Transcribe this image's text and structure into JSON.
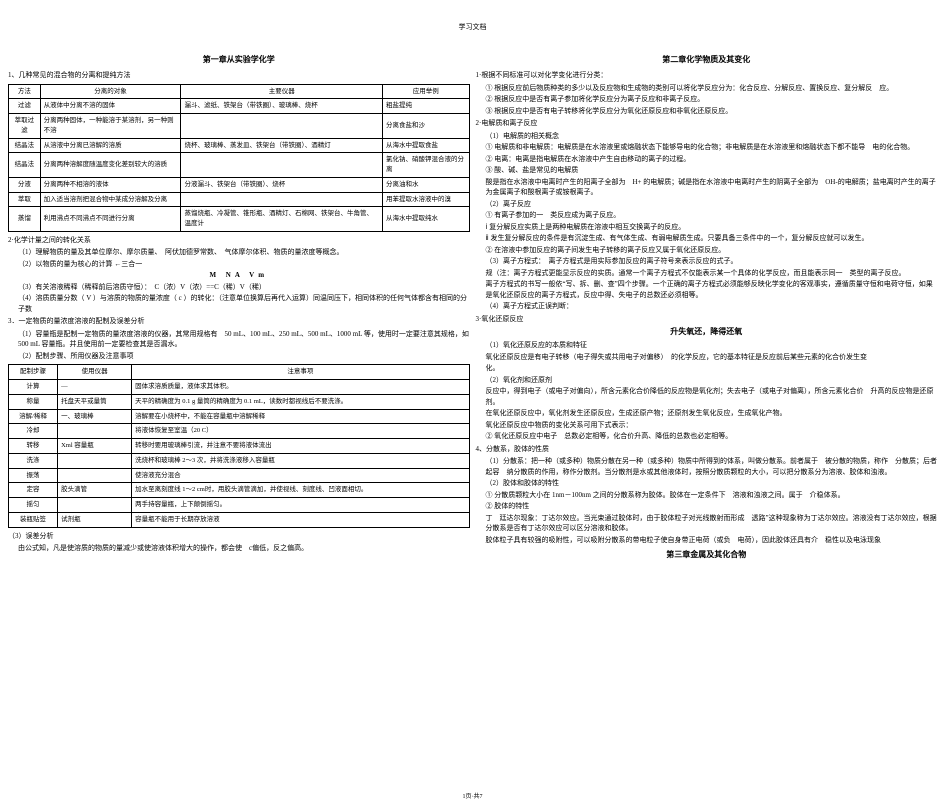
{
  "header": "学习文档",
  "footer": "1页·共7",
  "left": {
    "chapter": "第一章从实验学化学",
    "s1": "1、几种常见的混合物的分离和提纯方法",
    "tbl1": {
      "head": [
        "方法",
        "分离的对象",
        "主要仪器",
        "应用举例"
      ],
      "rows": [
        [
          "过滤",
          "从液体中分离不溶的固体",
          "漏斗、滤纸、铁架台（带铁圈）、玻璃棒、烧杯",
          "粗盐提纯"
        ],
        [
          "萃取过滤",
          "分离两种固体，一种能溶于某溶剂，另一种则不溶",
          "",
          "分离食盐和沙"
        ],
        [
          "结晶法",
          "从溶液中分离已溶解的溶质",
          "烧杯、玻璃棒、蒸发皿、铁架台（带铁圈）、酒精灯",
          "从海水中提取食盐"
        ],
        [
          "结晶法",
          "分离两种溶解度随温度变化差别较大的溶质",
          "",
          "氯化钠、硝酸钾混合液的分离"
        ],
        [
          "分液",
          "分离两种不相溶的液体",
          "分液漏斗、铁架台（带铁圈）、烧杯",
          "分离油和水"
        ],
        [
          "萃取",
          "加入适当溶剂把混合物中某成分溶解及分离",
          "",
          "用苯提取水溶液中的溴"
        ],
        [
          "蒸馏",
          "利用沸点不同沸点不同进行分离",
          "蒸馏烧瓶、冷凝管、锥形瓶、酒精灯、石棉网、铁架台、牛角管、温度计",
          "从海水中提取纯水"
        ]
      ]
    },
    "s2": "2·化学计量之间的转化关系",
    "s2a": "（1）理解物质的量及其单位摩尔、摩尔质量、　阿伏加德罗常数、　气体摩尔体积、物质的量浓度等概念。",
    "s2b": "（2）以物质的量为核心的计算 ←三合一",
    "s2b_formula": "M  NA  Vm",
    "s2c": "（3）有关溶液稀释（稀释前后溶质守恒）：　C（浓）V（浓）==C（稀）V（稀）",
    "s2d": "（4）溶质质量分数（ V ）与溶质的物质的量浓度（ c ）的转化：（注意单位换算后再代入运算）同温同压下，相同体积的任何气体都含有相同的分子数",
    "s3": "3．一定物质的量浓度溶液的配制及误差分析",
    "s3a": "（1）容量瓶是配制一定物质的量浓度溶液的仪器，其常用规格有　50 mL、100 mL、250 mL、500 mL、1000 mL 等，使用时一定要注意其规格，如 500 mL 容量瓶。并且使用前一定要检查其是否漏水。",
    "s3b": "（2）配制步骤、所用仪器及注意事项",
    "tbl2": {
      "head": [
        "配制步骤",
        "使用仪器",
        "注意事项"
      ],
      "rows": [
        [
          "计算",
          "—",
          "固体求溶质质量，液体求其体积。"
        ],
        [
          "称量",
          "托盘天平或量筒",
          "天平的精确度为 0.1 g 量筒的精确度为 0.1 mL，读数时都视线后不要洗涤。"
        ],
        [
          "溶解/稀释",
          "一、玻璃棒",
          "溶解要在小烧杯中，不能在容量瓶中溶解稀释"
        ],
        [
          "冷却",
          "",
          "将液体恢复至室温（20 C）"
        ],
        [
          "转移",
          "Xml 容量瓶",
          "转移时要用玻璃棒引流，并注意不要将液体流出"
        ],
        [
          "洗涤",
          "",
          "洗烧杯和玻璃棒 2～3 次，并将洗涤液移入容量瓶"
        ],
        [
          "振荡",
          "",
          "使溶液充分混合"
        ],
        [
          "定容",
          "胶头滴管",
          "加水至离刻度线 1～2 cm时，用胶头滴管滴加，并使视线、刻度线、凹液面相切。"
        ],
        [
          "摇匀",
          "",
          "两手持容量瓶，上下颠倒摇匀。"
        ],
        [
          "装瓶贴签",
          "试剂瓶",
          "容量瓶不能用于长期存放溶液"
        ]
      ]
    },
    "s3c": "（3）误差分析",
    "s3d": "由公式知，凡是使溶质的物质的量减少或使溶液体积增大的操作，都会使　c偏低，反之偏高。"
  },
  "right": {
    "chapter": "第二章化学物质及其变化",
    "s1": "1·根据不同标准可以对化学变化进行分类：",
    "s1a": "① 根据反应前后物质种类的多少以及反应物和生成物的类别可以将化学反应分为：化合反应、分解反应、置换反应、复分解反　应。",
    "s1b": "② 根据反应中是否有离子参加将化学反应分为离子反应和非离子反应。",
    "s1c": "③ 根据反应中是否有电子转移将化学反应分为氧化还原反应和非氧化还原反应。",
    "s2": "2·电解质和离子反应",
    "s2_1": "（1）电解质的相关概念",
    "s2_1a": "① 电解质和非电解质：电解质是在水溶液里或熔融状态下能够导电的化合物；非电解质是在水溶液里和熔融状态下都不能导　电的化合物。",
    "s2_1b": "② 电离：电离是指电解质在水溶液中产生自由移动的离子的过程。",
    "s2_1c": "③ 酸、碱、盐是常见的电解质",
    "s2_1d": "酸是指在水溶液中电离时产生的阳离子全部为　H+ 的电解质；碱是指在水溶液中电离时产生的阴离子全部为　OH-的电解质；盐电离时产生的离子为金属离子和酸根离子或铵根离子。",
    "s2_2": "（2）离子反应",
    "s2_2a": "① 有离子参加的一　类反应成为离子反应。",
    "s2_2b": "ⅰ 复分解反应实质上是两种电解质在溶液中相互交换离子的反应。",
    "s2_2c": "ⅱ 发生复分解反应的条件是有沉淀生成、有气体生成、有弱电解质生成。只要具备三条件中的一个，复分解反应就可以发生。",
    "s2_2d": "② 在溶液中参加反应的离子间发生电子转移的离子反应又属于氧化还原反应。",
    "s2_3": "（3）离子方程式：　离子方程式是用实际参加反应的离子符号来表示反应的式子。",
    "s2_3a": "规（注：离子方程式更能显示反应的实质。通常一个离子方程式不仅能表示某一个具体的化学反应，而且能表示同一　类型的离子反应。",
    "s2_3b": "离子方程式的书写一般依“写、拆、删、查”四个步骤。一个正确的离子方程式必须能够反映化学变化的客观事实，遵循质量守恒和电荷守恒，如果是氧化还原反应的离子方程式，反应中得、失电子的总数还必须相等。",
    "s2_4": "（4）离子方程式正误判断：",
    "s3": "3·氧化还原反应",
    "mid": "升失氧还，降得还氧",
    "s3_1": "（1）氧化还原反应的本质和特征",
    "s3_1a": "氧化还原反应是有电子转移（电子得失或共用电子对偏移）　的化学反应，它的基本特征是反应前后某些元素的化合价发生变",
    "s3_1b": "化。",
    "s3_2": "（2）氧化剂和还原剂",
    "s3_2a": "反应中，得到电子（或电子对偏向），所含元素化合价降低的反应物是氧化剂；失去电子（或电子对偏离），所含元素化合价　升高的反应物是还原剂。",
    "s3_2b": "在氧化还原反应中，氧化剂发生还原反应，生成还原产物；还原剂发生氧化反应，生成氧化产物。",
    "s3_2c": "氧化还原反应中物质的变化关系可用下式表示：",
    "s3_2d": "② 氧化还原反应中电子　总数必定相等，化合价升高、降低的总数也必定相等。",
    "s4": "4、分散系，胶体的性质",
    "s4_1": "（1）分散系：把一种（或多种）物质分散在另一种（或多种）物质中所得到的体系，叫做分散系。前者属于　被分散的物质，称作　分散质；后者起容　纳分散质的作用，称作分散剂。当分散剂是水或其他液体时，按照分散质颗粒的大小，可以把分散系分为溶液、胶体和浊液。",
    "s4_2": "（2）胶体和胶体的特性",
    "s4_2a": "① 分散质颗粒大小在 1nm－100nm 之间的分散系称为胶体。胶体在一定条件下　溶液和浊液之间。属于　介稳体系。",
    "s4_2b": "② 胶体的特性",
    "s4_2c": "丁　廷达尔现象：丁达尔效应。当光束通过胶体时，由于胶体粒子对光线散射而形成　透路”这种现象称为丁达尔效应。溶液没有丁达尔效应，根据分散系是否有丁达尔效应可以区分溶液和胶体。",
    "s4_2d": "胶体粒子具有较强的吸附性，可以吸附分散系的带电粒子使自身带正电荷（或负　电荷），因此胶体还具有介　稳性以及电泳现象",
    "chapter3": "第三章金属及其化合物"
  }
}
